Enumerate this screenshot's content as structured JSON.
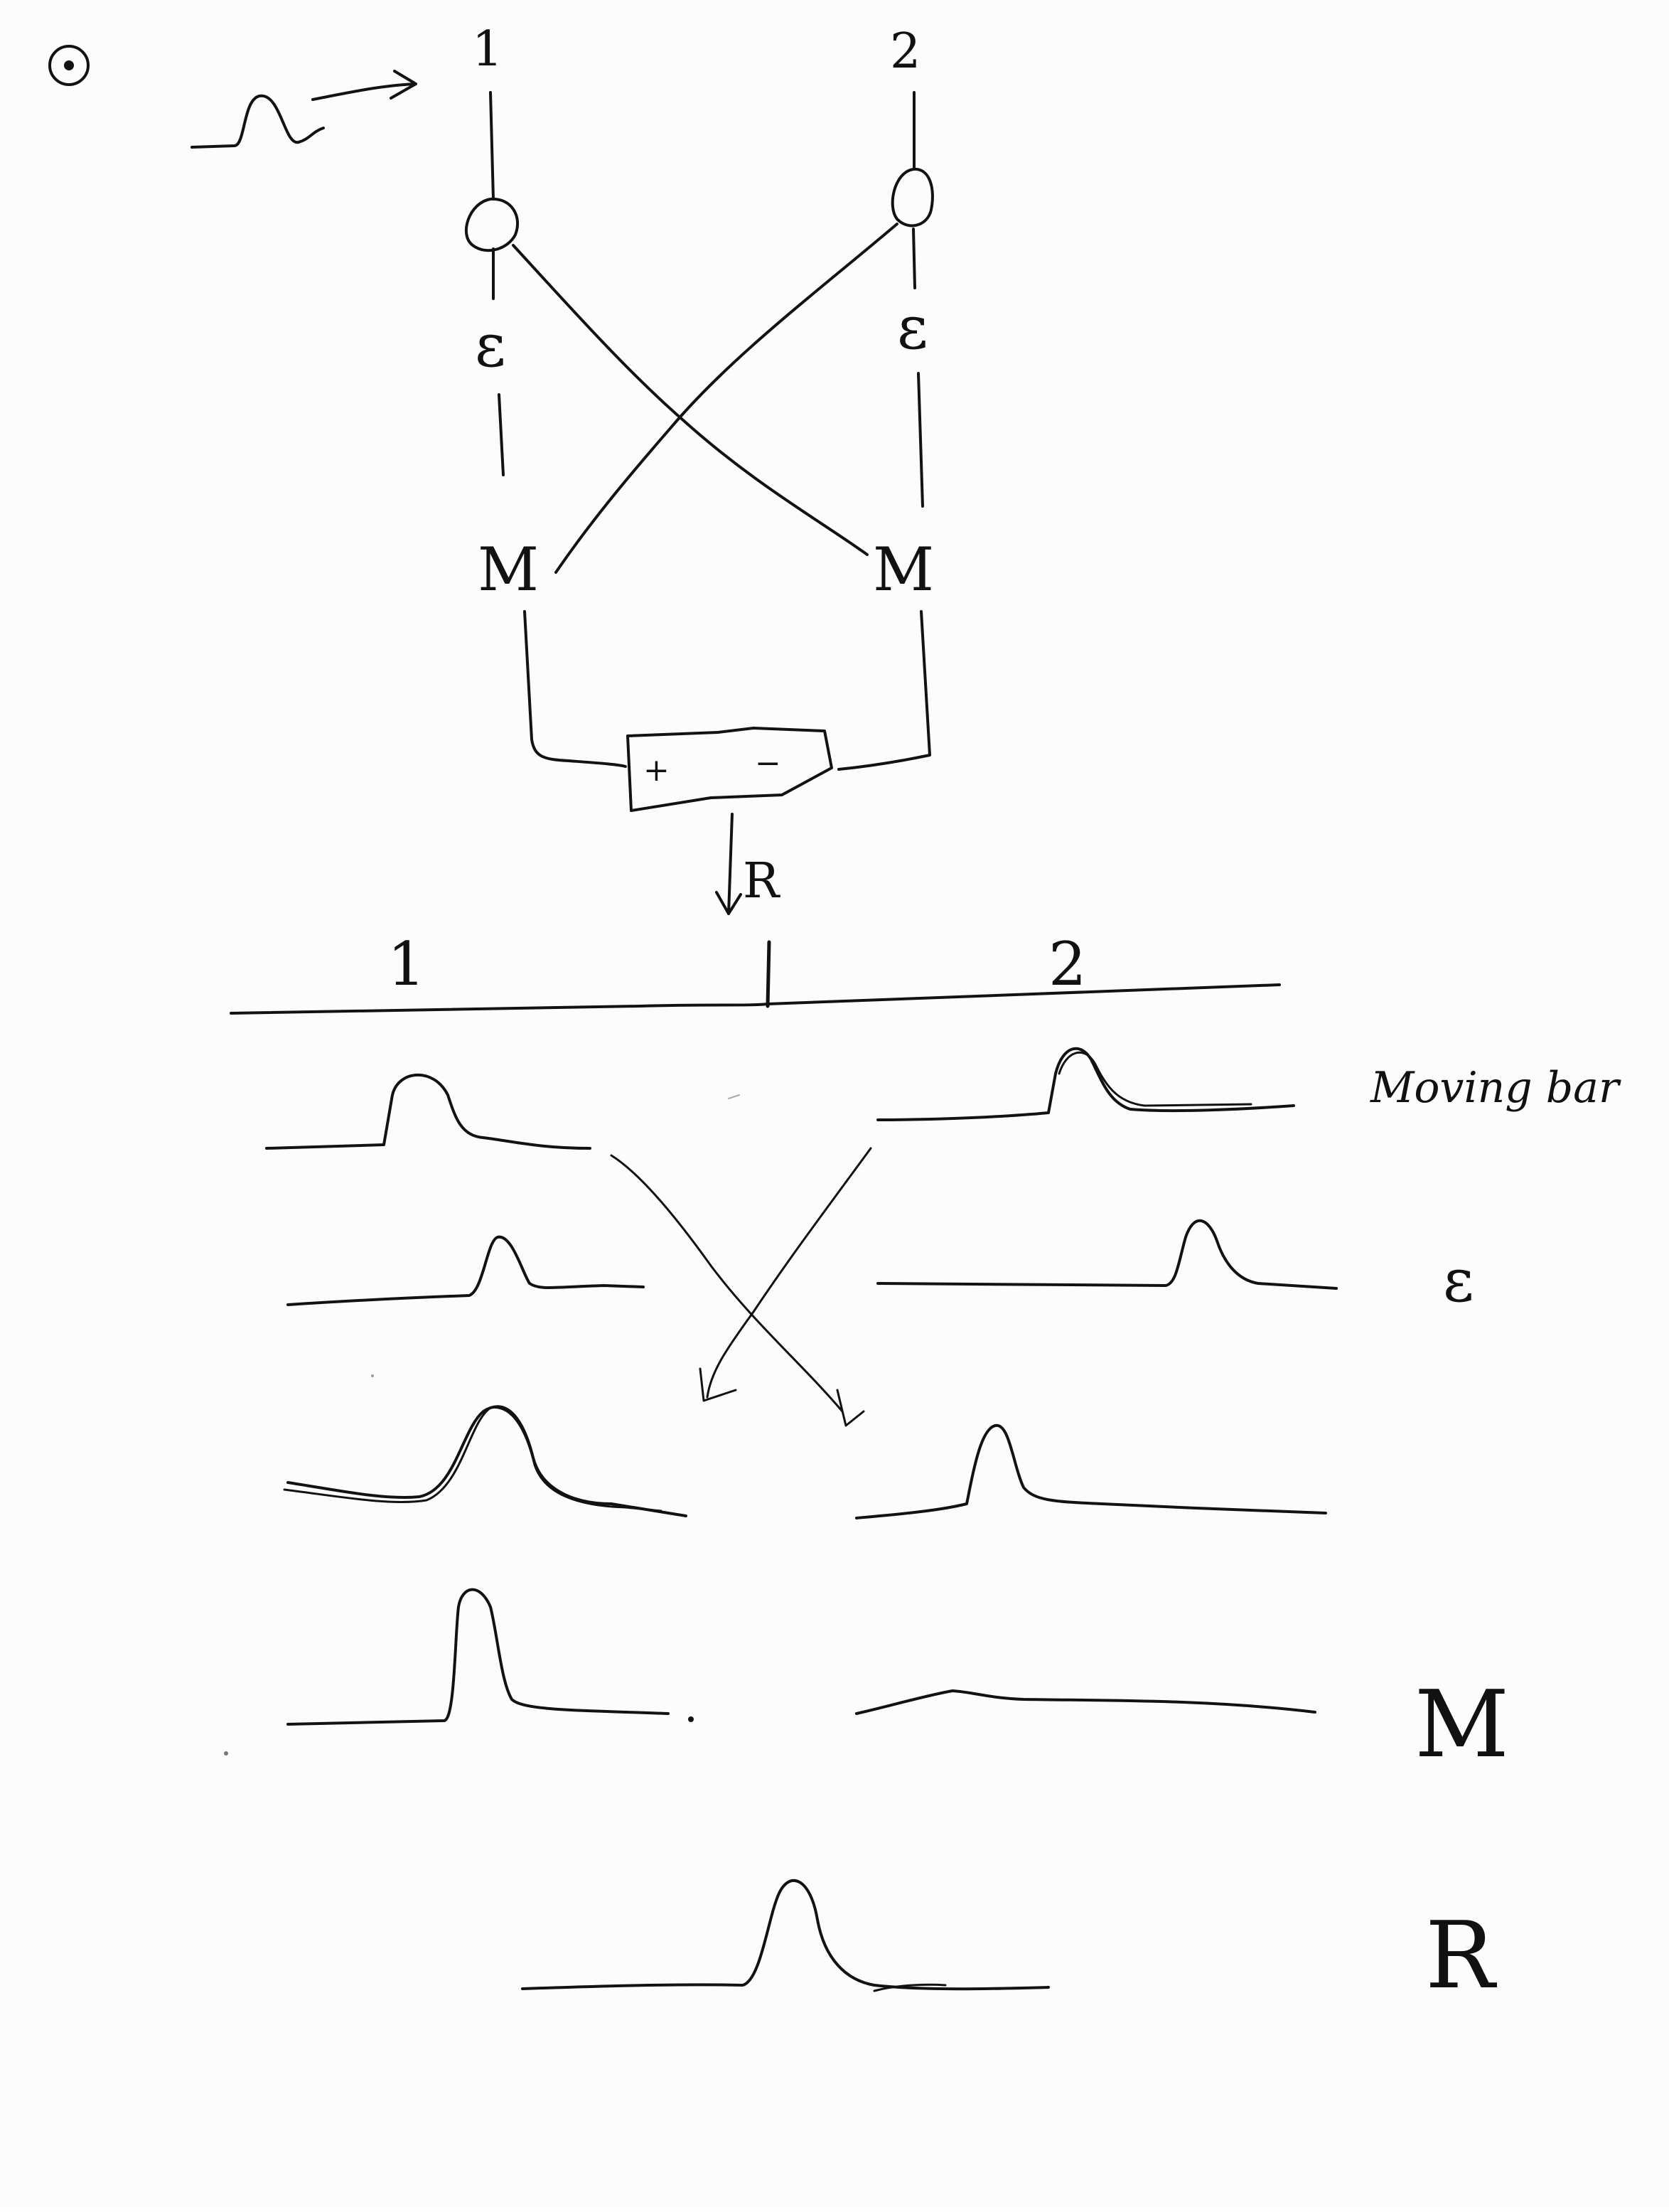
{
  "diagram": {
    "circuit": {
      "input_label_1": "1",
      "input_label_2": "2",
      "e_label_left": "ε",
      "e_label_right": "ε",
      "m_label_left": "M",
      "m_label_right": "M",
      "box_plus": "+",
      "box_minus": "−",
      "output_label": "R"
    },
    "axis": {
      "position_label_1": "1",
      "position_label_2": "2"
    },
    "rows": {
      "moving_bar": "Moving bar",
      "epsilon": "ε",
      "m": "M",
      "r": "R"
    }
  }
}
